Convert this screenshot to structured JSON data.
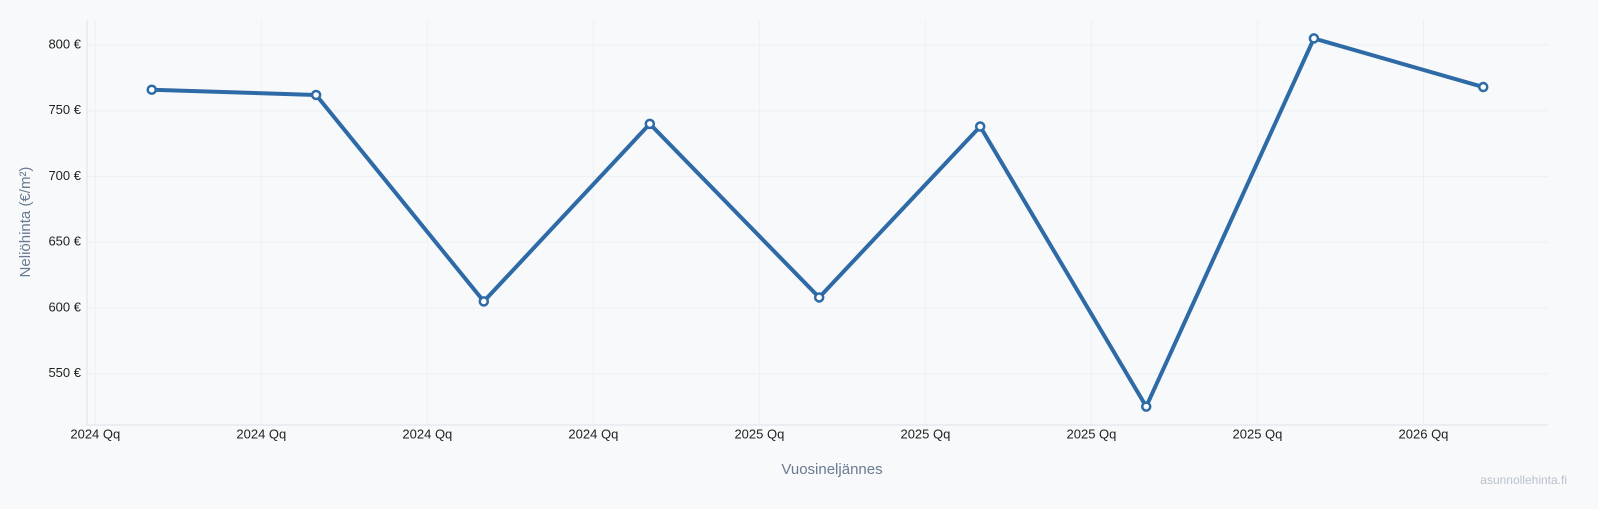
{
  "chart_data": {
    "type": "line",
    "x_label": "Vuosineljännes",
    "y_label": "Neliöhinta (€/m²)",
    "watermark": "asunnollehinta.fi",
    "x": [
      0.34,
      1.33,
      2.34,
      3.34,
      4.36,
      5.33,
      6.33,
      7.34,
      8.36
    ],
    "series": [
      {
        "color": "#2e6aa6",
        "values": [
          766,
          762,
          605,
          740,
          608,
          738,
          525,
          805,
          768
        ]
      }
    ],
    "xlim": [
      -0.05,
      8.75
    ],
    "xticks": [
      {
        "value": 0,
        "label": "2024 Qq"
      },
      {
        "value": 1,
        "label": "2024 Qq"
      },
      {
        "value": 2,
        "label": "2024 Qq"
      },
      {
        "value": 3,
        "label": "2024 Qq"
      },
      {
        "value": 4,
        "label": "2025 Qq"
      },
      {
        "value": 5,
        "label": "2025 Qq"
      },
      {
        "value": 6,
        "label": "2025 Qq"
      },
      {
        "value": 7,
        "label": "2025 Qq"
      },
      {
        "value": 8,
        "label": "2026 Qq"
      }
    ],
    "ylim": [
      511,
      819
    ],
    "yticks": [
      {
        "value": 550,
        "label": "550 €"
      },
      {
        "value": 600,
        "label": "600 €"
      },
      {
        "value": 650,
        "label": "650 €"
      },
      {
        "value": 700,
        "label": "700 €"
      },
      {
        "value": 750,
        "label": "750 €"
      },
      {
        "value": 800,
        "label": "800 €"
      }
    ],
    "grid": true
  }
}
